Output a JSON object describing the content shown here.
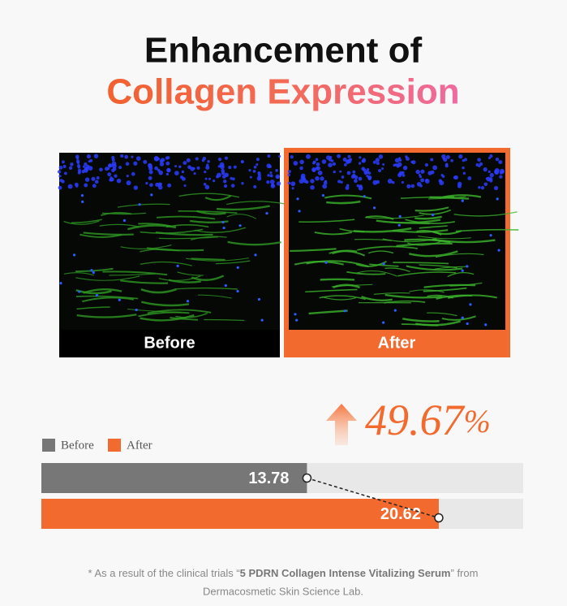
{
  "title": {
    "line1": "Enhancement of",
    "line2": "Collagen Expression"
  },
  "images": [
    {
      "label": "Before"
    },
    {
      "label": "After"
    }
  ],
  "increase": {
    "number": "49.67",
    "unit": "%"
  },
  "chart_data": {
    "type": "bar",
    "orientation": "horizontal",
    "series": [
      {
        "name": "Before",
        "color": "#777777",
        "values": [
          13.78
        ]
      },
      {
        "name": "After",
        "color": "#f26a2e",
        "values": [
          20.62
        ]
      }
    ],
    "xlim": [
      0,
      25
    ],
    "track_color": "#e8e8e8",
    "connector": true
  },
  "footnote": {
    "prefix": "* As a result of the clinical trials “",
    "product": "5 PDRN Collagen Intense Vitalizing Serum",
    "suffix": "” from",
    "line2": "Dermacosmetic Skin Science Lab."
  }
}
